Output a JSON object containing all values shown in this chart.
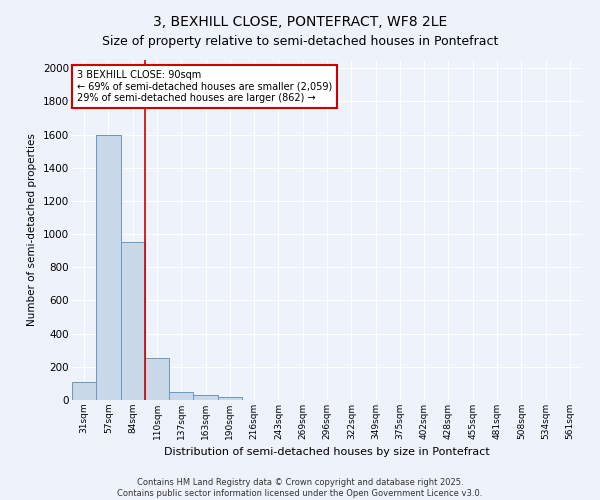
{
  "title1": "3, BEXHILL CLOSE, PONTEFRACT, WF8 2LE",
  "title2": "Size of property relative to semi-detached houses in Pontefract",
  "xlabel": "Distribution of semi-detached houses by size in Pontefract",
  "ylabel": "Number of semi-detached properties",
  "annotation_title": "3 BEXHILL CLOSE: 90sqm",
  "annotation_line1": "← 69% of semi-detached houses are smaller (2,059)",
  "annotation_line2": "29% of semi-detached houses are larger (862) →",
  "footer1": "Contains HM Land Registry data © Crown copyright and database right 2025.",
  "footer2": "Contains public sector information licensed under the Open Government Licence v3.0.",
  "categories": [
    "31sqm",
    "57sqm",
    "84sqm",
    "110sqm",
    "137sqm",
    "163sqm",
    "190sqm",
    "216sqm",
    "243sqm",
    "269sqm",
    "296sqm",
    "322sqm",
    "349sqm",
    "375sqm",
    "402sqm",
    "428sqm",
    "455sqm",
    "481sqm",
    "508sqm",
    "534sqm",
    "561sqm"
  ],
  "values": [
    110,
    1600,
    950,
    255,
    50,
    30,
    20,
    0,
    0,
    0,
    0,
    0,
    0,
    0,
    0,
    0,
    0,
    0,
    0,
    0,
    0
  ],
  "bar_color": "#c9d9ea",
  "bar_edge_color": "#6699bb",
  "red_line_x": 2.5,
  "ylim": [
    0,
    2050
  ],
  "yticks": [
    0,
    200,
    400,
    600,
    800,
    1000,
    1200,
    1400,
    1600,
    1800,
    2000
  ],
  "background_color": "#eef2fa",
  "grid_color": "#ffffff",
  "title1_fontsize": 10,
  "title2_fontsize": 9,
  "annotation_box_color": "#ffffff",
  "annotation_box_edge": "#cc0000",
  "red_line_color": "#cc0000"
}
